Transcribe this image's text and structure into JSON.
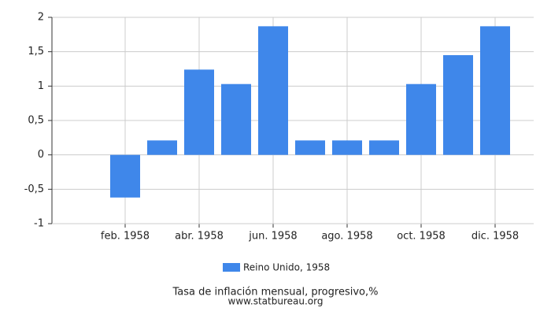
{
  "chart_data": {
    "type": "bar",
    "title": "Tasa de inflación mensual, progresivo,%",
    "subtitle": "www.statbureau.org",
    "categories": [
      null,
      "feb. 1958",
      null,
      "abr. 1958",
      null,
      "jun. 1958",
      null,
      "ago. 1958",
      null,
      "oct. 1958",
      null,
      "dic. 1958"
    ],
    "series": [
      {
        "name": "Reino Unido, 1958",
        "color": "#3f87ea",
        "values": [
          0,
          -0.62,
          0.21,
          1.24,
          1.03,
          1.87,
          0.21,
          0.21,
          0.21,
          1.03,
          1.45,
          1.87
        ]
      }
    ],
    "ylim": [
      -1,
      2
    ],
    "yticks": [
      -1,
      {
        "value": -0.5,
        "label": "-0,5"
      },
      0,
      {
        "value": 0.5,
        "label": "0,5"
      },
      1,
      {
        "value": 1.5,
        "label": "1,5"
      },
      2
    ],
    "grid": true
  }
}
